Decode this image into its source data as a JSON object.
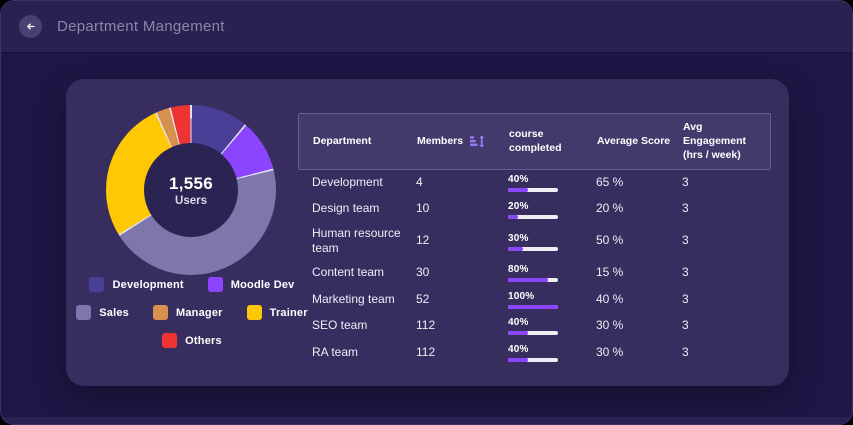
{
  "header": {
    "title": "Department Mangement",
    "back_icon": "arrow-left-icon"
  },
  "colors": {
    "accent_purple": "#8b45ff",
    "progress_track": "#edeef3",
    "card_bg": "#372e5f",
    "page_bg": "#1e1745",
    "topbar_bg": "#2a2150",
    "table_header_bg": "#433a6c"
  },
  "chart_data": {
    "type": "pie",
    "title": "Department distribution donut",
    "center_value": "1,556",
    "center_label": "Users",
    "legend_position": "bottom",
    "segments": [
      {
        "label": "Development",
        "value": 11.1,
        "color": "#4a3f96"
      },
      {
        "label": "Moodle Dev",
        "value": 10.0,
        "color": "#8c45ff"
      },
      {
        "label": "Sales",
        "value": 45.0,
        "color": "#7d77ab"
      },
      {
        "label": "Trainer",
        "value": 27.1,
        "color": "#ffc804"
      },
      {
        "label": "Manager",
        "value": 2.8,
        "color": "#d8904d"
      },
      {
        "label": "Others",
        "value": 4.0,
        "color": "#ee3432"
      }
    ],
    "legend_rows": [
      [
        "Development",
        "Moodle Dev"
      ],
      [
        "Sales",
        "Manager",
        "Trainer"
      ],
      [
        "Others"
      ]
    ]
  },
  "table": {
    "columns": [
      {
        "label": "Department",
        "sortable": false
      },
      {
        "label": "Members",
        "sortable": true,
        "sort_icon": "sort-bars-updown-icon"
      },
      {
        "label": "course completed",
        "sortable": false
      },
      {
        "label": "Average Score",
        "sortable": false
      },
      {
        "label": "Avg Engagement (hrs / week)",
        "sortable": false
      }
    ],
    "rows": [
      {
        "department": "Development",
        "members": "4",
        "course_completed_pct": 40,
        "course_completed_label": "40%",
        "average_score": "65 %",
        "engagement": "3"
      },
      {
        "department": "Design team",
        "members": "10",
        "course_completed_pct": 20,
        "course_completed_label": "20%",
        "average_score": "20 %",
        "engagement": "3"
      },
      {
        "department": "Human resource team",
        "members": "12",
        "course_completed_pct": 30,
        "course_completed_label": "30%",
        "average_score": "50 %",
        "engagement": "3"
      },
      {
        "department": "Content team",
        "members": "30",
        "course_completed_pct": 80,
        "course_completed_label": "80%",
        "average_score": "15 %",
        "engagement": "3"
      },
      {
        "department": "Marketing team",
        "members": "52",
        "course_completed_pct": 100,
        "course_completed_label": "100%",
        "average_score": "40 %",
        "engagement": "3"
      },
      {
        "department": "SEO team",
        "members": "112",
        "course_completed_pct": 40,
        "course_completed_label": "40%",
        "average_score": "30 %",
        "engagement": "3"
      },
      {
        "department": "RA team",
        "members": "112",
        "course_completed_pct": 40,
        "course_completed_label": "40%",
        "average_score": "30 %",
        "engagement": "3"
      }
    ]
  }
}
